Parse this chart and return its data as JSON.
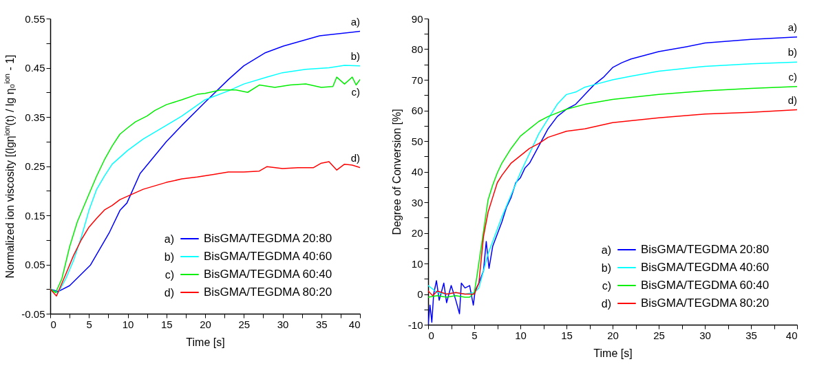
{
  "chart_data": [
    {
      "type": "line",
      "xlabel": "Time [s]",
      "ylabel": "Normalized ion viscosity [(lgη$^{ion}$(t) / lg η₀$^{ion}$ - 1]",
      "xlim": [
        0,
        40
      ],
      "ylim": [
        -0.05,
        0.55
      ],
      "xticks": [
        0,
        {
          "value": 2.5,
          "label": null
        },
        5,
        {
          "value": 7.5,
          "label": null
        },
        10,
        {
          "value": 12.5,
          "label": null
        },
        15,
        {
          "value": 17.5,
          "label": null
        },
        20,
        {
          "value": 22.5,
          "label": null
        },
        25,
        {
          "value": 27.5,
          "label": null
        },
        30,
        {
          "value": 32.5,
          "label": null
        },
        35,
        {
          "value": 37.5,
          "label": null
        },
        40
      ],
      "yticks": [
        -0.05,
        {
          "value": 0,
          "label": null
        },
        0.05,
        {
          "value": 0.1,
          "label": null
        },
        0.15,
        {
          "value": 0.2,
          "label": null
        },
        0.25,
        {
          "value": 0.3,
          "label": null
        },
        0.35,
        {
          "value": 0.4,
          "label": null
        },
        0.45,
        {
          "value": 0.5,
          "label": null
        },
        0.55
      ],
      "grid": false,
      "legend": "bottom right",
      "marker": "none",
      "line_style": "solid",
      "series": [
        {
          "name": "BisGMA/TEGDMA 20:80",
          "color": "#0000ff",
          "x": [
            0,
            1,
            2.5,
            5.2,
            7.6,
            9,
            9.9,
            11.6,
            15,
            17,
            20,
            23,
            25,
            27.7,
            30.1,
            34.8,
            40
          ],
          "values": [
            0,
            -0.005,
            0.007,
            0.049,
            0.114,
            0.16,
            0.175,
            0.235,
            0.3,
            0.333,
            0.38,
            0.426,
            0.454,
            0.48,
            0.494,
            0.515,
            0.524
          ]
        },
        {
          "name": "BisGMA/TEGDMA 40:60",
          "color": "#00ffff",
          "x": [
            0,
            1,
            2,
            3,
            4,
            5,
            6,
            7,
            8,
            10,
            12,
            15,
            17,
            20,
            23,
            25,
            28,
            30,
            33,
            36,
            38,
            40
          ],
          "values": [
            0,
            -0.008,
            0.021,
            0.058,
            0.105,
            0.16,
            0.203,
            0.23,
            0.254,
            0.282,
            0.305,
            0.333,
            0.352,
            0.385,
            0.403,
            0.417,
            0.431,
            0.44,
            0.447,
            0.45,
            0.455,
            0.454
          ]
        },
        {
          "name": "BisGMA/TEGDMA 60:40",
          "color": "#00ee00",
          "x": [
            0,
            0.7,
            1.5,
            2.5,
            3.5,
            5,
            6,
            7,
            8,
            9,
            10,
            11,
            12.5,
            13.5,
            15,
            17,
            19,
            20,
            22,
            24,
            25.5,
            27,
            29,
            31,
            33,
            35,
            36.5,
            37,
            38,
            39,
            39.5,
            40
          ],
          "values": [
            0,
            -0.007,
            0.021,
            0.086,
            0.137,
            0.193,
            0.23,
            0.263,
            0.291,
            0.315,
            0.328,
            0.34,
            0.352,
            0.363,
            0.375,
            0.385,
            0.396,
            0.398,
            0.405,
            0.405,
            0.4,
            0.415,
            0.41,
            0.415,
            0.417,
            0.41,
            0.412,
            0.431,
            0.417,
            0.431,
            0.415,
            0.426
          ]
        },
        {
          "name": "BisGMA/TEGDMA 80:20",
          "color": "#ff0000",
          "x": [
            0,
            0.8,
            2,
            3,
            4,
            5,
            6,
            7,
            8,
            9,
            10,
            11,
            12,
            13.5,
            15,
            17,
            19,
            21,
            23,
            25,
            27,
            28,
            30,
            32,
            34,
            35,
            36,
            37,
            38,
            39,
            40
          ],
          "values": [
            0,
            -0.014,
            0.03,
            0.068,
            0.1,
            0.126,
            0.144,
            0.161,
            0.17,
            0.182,
            0.189,
            0.196,
            0.203,
            0.21,
            0.217,
            0.224,
            0.228,
            0.233,
            0.238,
            0.238,
            0.24,
            0.249,
            0.245,
            0.247,
            0.247,
            0.256,
            0.259,
            0.242,
            0.254,
            0.252,
            0.247
          ]
        }
      ],
      "annotations": [
        "a)",
        "b)",
        "c)",
        "d)"
      ]
    },
    {
      "type": "line",
      "xlabel": "Time [s]",
      "ylabel": "Degree of Conversion [%]",
      "xlim": [
        0,
        40
      ],
      "ylim": [
        -10,
        90
      ],
      "xticks": [
        0,
        {
          "value": 2.5,
          "label": null
        },
        5,
        {
          "value": 7.5,
          "label": null
        },
        10,
        {
          "value": 12.5,
          "label": null
        },
        15,
        {
          "value": 17.5,
          "label": null
        },
        20,
        {
          "value": 22.5,
          "label": null
        },
        25,
        {
          "value": 27.5,
          "label": null
        },
        30,
        {
          "value": 32.5,
          "label": null
        },
        35,
        {
          "value": 37.5,
          "label": null
        },
        40
      ],
      "yticks": [
        -10,
        {
          "value": -5,
          "label": null
        },
        0,
        {
          "value": 5,
          "label": null
        },
        10,
        {
          "value": 15,
          "label": null
        },
        20,
        {
          "value": 25,
          "label": null
        },
        30,
        {
          "value": 35,
          "label": null
        },
        40,
        {
          "value": 45,
          "label": null
        },
        50,
        {
          "value": 55,
          "label": null
        },
        60,
        {
          "value": 65,
          "label": null
        },
        70,
        {
          "value": 75,
          "label": null
        },
        80,
        {
          "value": 85,
          "label": null
        },
        90
      ],
      "grid": false,
      "legend": "bottom right",
      "marker": "none",
      "line_style": "solid",
      "series": [
        {
          "name": "BisGMA/TEGDMA 20:80",
          "color": "#0000ff",
          "x": [
            0,
            0.2,
            0.4,
            0.6,
            0.9,
            1.2,
            1.7,
            2,
            2.5,
            3,
            3.4,
            3.6,
            4,
            4.5,
            4.9,
            5.1,
            5.5,
            6,
            6.3,
            6.6,
            7,
            7.5,
            8,
            8.5,
            9,
            9.5,
            10,
            10.5,
            11,
            12,
            13,
            14,
            15,
            16,
            17,
            18,
            19,
            20,
            21,
            22,
            25,
            28,
            30,
            35,
            40
          ],
          "values": [
            -10,
            -3.6,
            -9.2,
            0,
            4.4,
            -2,
            3.6,
            -2.8,
            2.8,
            -2,
            -6.4,
            3.6,
            2,
            2.8,
            -3.6,
            1.2,
            3.6,
            7.6,
            17.2,
            8.4,
            15.6,
            19.6,
            23.6,
            28.4,
            31.6,
            36.4,
            38,
            41.2,
            42.8,
            48.4,
            54,
            58,
            60.4,
            62,
            65.2,
            68.4,
            70.8,
            74,
            75.6,
            76.8,
            79.2,
            80.8,
            82,
            83.2,
            84
          ]
        },
        {
          "name": "BisGMA/TEGDMA 40:60",
          "color": "#00ffff",
          "x": [
            0,
            1,
            2,
            3,
            4,
            5,
            5.5,
            6,
            6.5,
            7,
            8,
            9,
            10,
            11,
            12,
            13,
            14,
            15,
            16,
            17,
            18,
            20,
            22,
            25,
            30,
            35,
            40
          ],
          "values": [
            2.8,
            0.5,
            0,
            0.5,
            0,
            0.5,
            2,
            7.6,
            13.2,
            17.2,
            25.2,
            32.4,
            39.6,
            46,
            52.4,
            57.2,
            62,
            65.2,
            66,
            67.6,
            68.4,
            70,
            71.2,
            72.8,
            74.4,
            75.2,
            75.8
          ]
        },
        {
          "name": "BisGMA/TEGDMA 60:40",
          "color": "#00ee00",
          "x": [
            0,
            1,
            2,
            3,
            4,
            4.5,
            5,
            5.3,
            6,
            6.5,
            7,
            7.5,
            8,
            9,
            10,
            11,
            12,
            13,
            15,
            17,
            20,
            25,
            30,
            35,
            40
          ],
          "values": [
            -1,
            -0.5,
            -1,
            -0.5,
            -1,
            -1,
            0.4,
            6,
            20.4,
            30.8,
            35.6,
            39.6,
            42.8,
            47.6,
            51.6,
            54,
            56.4,
            58,
            60.4,
            62,
            63.6,
            65.2,
            66.4,
            67.2,
            67.8
          ]
        },
        {
          "name": "BisGMA/TEGDMA 80:20",
          "color": "#ff0000",
          "x": [
            0,
            0.5,
            1,
            2,
            3,
            4,
            5,
            5.5,
            6,
            6.5,
            7,
            7.5,
            8,
            9,
            10,
            11,
            12,
            13,
            15,
            17,
            20,
            25,
            30,
            35,
            40
          ],
          "values": [
            1,
            -0.5,
            1,
            0,
            0.5,
            0,
            0,
            3.6,
            18.8,
            26.8,
            31.6,
            36.4,
            38.8,
            42.8,
            45.2,
            47.6,
            49.2,
            51.2,
            53.2,
            54,
            56,
            57.6,
            58.8,
            59.4,
            60.2
          ]
        }
      ],
      "annotations": [
        "a)",
        "b)",
        "c)",
        "d)"
      ]
    }
  ]
}
